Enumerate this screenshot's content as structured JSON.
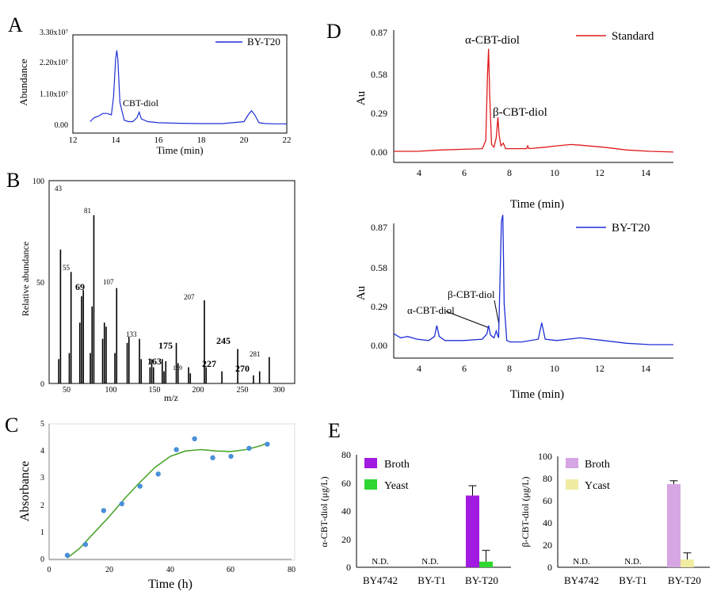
{
  "panels": {
    "A": {
      "letter": "A",
      "legend": "BY-T20",
      "peak_label": "CBT-diol",
      "xlabel": "Time (min)",
      "ylabel": "Abundance",
      "xticks": [
        "12",
        "14",
        "16",
        "18",
        "20",
        "22"
      ],
      "yticks": [
        "0.00",
        "1.10x10⁷",
        "2.20x10⁷",
        "3.30x10⁷"
      ]
    },
    "B": {
      "letter": "B",
      "xlabel": "m/z",
      "ylabel": "Relative abundance",
      "xticks": [
        "50",
        "100",
        "150",
        "200",
        "250",
        "300"
      ],
      "yticks": [
        "0",
        "50",
        "100"
      ],
      "labels": [
        "43",
        "55",
        "69",
        "81",
        "107",
        "133",
        "175",
        "163",
        "189",
        "207",
        "227",
        "245",
        "270",
        "281"
      ]
    },
    "C": {
      "letter": "C",
      "xlabel": "Time (h)",
      "ylabel": "Absorbance",
      "xticks": [
        "0",
        "20",
        "40",
        "60",
        "80"
      ],
      "yticks": [
        "0",
        "1",
        "2",
        "3",
        "4",
        "5"
      ]
    },
    "D": {
      "letter": "D",
      "top_legend": "Standard",
      "bottom_legend": "BY-T20",
      "top_labels": [
        "α-CBT-diol",
        "β-CBT-diol"
      ],
      "bottom_labels": [
        "β-CBT-diol",
        "α-CBT-diol"
      ],
      "xlabel": "Time (min)",
      "ylabel": "Au",
      "xticks": [
        "4",
        "6",
        "8",
        "10",
        "12",
        "14"
      ],
      "yticks": [
        "0.00",
        "0.29",
        "0.58",
        "0.87"
      ]
    },
    "E": {
      "letter": "E",
      "left_ylabel": "α-CBT-diol (μg/L)",
      "right_ylabel": "β-CBT-diol (μg/L)",
      "left_yticks": [
        "0",
        "20",
        "40",
        "60",
        "80"
      ],
      "right_yticks": [
        "0",
        "20",
        "40",
        "60",
        "80",
        "100"
      ],
      "categories": [
        "BY4742",
        "BY-T1",
        "BY-T20"
      ],
      "nd_label": "N.D.",
      "left_legend": [
        "Broth",
        "Yeast"
      ],
      "right_legend": [
        "Broth",
        "Ycast"
      ]
    }
  },
  "colors": {
    "blue": "#1f2fd6",
    "red": "#e01a1a",
    "green_curve": "#4da62f",
    "dot": "#4a90d9",
    "purple": "#a21be0",
    "green_bar": "#2fd62f",
    "lavender": "#d6a5e3",
    "cream": "#f0eca0"
  },
  "chart_data": [
    {
      "type": "line",
      "panel": "A",
      "xlabel": "Time (min)",
      "ylabel": "Abundance",
      "xlim": [
        12,
        22
      ],
      "ylim": [
        0,
        33000000
      ],
      "series": [
        {
          "name": "BY-T20",
          "x": [
            12.8,
            13.0,
            13.2,
            13.4,
            13.6,
            13.8,
            13.9,
            14.0,
            14.05,
            14.1,
            14.2,
            14.4,
            14.6,
            14.8,
            15.0,
            15.1,
            15.2,
            15.5,
            16.0,
            17.0,
            18.0,
            19.0,
            20.0,
            20.2,
            20.35,
            20.5,
            20.7,
            21.0,
            21.5,
            22.0
          ],
          "y": [
            1000000,
            2500000,
            3000000,
            4000000,
            4000000,
            3500000,
            10000000,
            24000000,
            27000000,
            24000000,
            8000000,
            1500000,
            1000000,
            1000000,
            2500000,
            4500000,
            2000000,
            1000000,
            600000,
            400000,
            300000,
            300000,
            1000000,
            3500000,
            5000000,
            3500000,
            600000,
            300000,
            200000,
            200000
          ]
        }
      ],
      "annotations": [
        "CBT-diol"
      ]
    },
    {
      "type": "bar",
      "panel": "B",
      "xlabel": "m/z",
      "ylabel": "Relative abundance",
      "xlim": [
        30,
        310
      ],
      "ylim": [
        0,
        100
      ],
      "x": [
        41,
        43,
        53,
        55,
        65,
        67,
        69,
        77,
        79,
        81,
        91,
        93,
        95,
        105,
        107,
        119,
        121,
        133,
        135,
        145,
        147,
        149,
        159,
        161,
        163,
        175,
        177,
        189,
        191,
        207,
        209,
        227,
        245,
        263,
        270,
        281
      ],
      "values": [
        12,
        66,
        15,
        55,
        30,
        43,
        46,
        15,
        38,
        83,
        22,
        30,
        28,
        15,
        47,
        20,
        23,
        22,
        12,
        8,
        12,
        8,
        12,
        6,
        11,
        20,
        10,
        8,
        5,
        41,
        8,
        6,
        17,
        4,
        6,
        13
      ]
    },
    {
      "type": "scatter",
      "panel": "C",
      "xlabel": "Time (h)",
      "ylabel": "Absorbance",
      "xlim": [
        0,
        80
      ],
      "ylim": [
        0,
        5
      ],
      "series": [
        {
          "name": "",
          "x": [
            6,
            12,
            18,
            24,
            30,
            36,
            42,
            48,
            54,
            60,
            66,
            72
          ],
          "y": [
            0.15,
            0.55,
            1.8,
            2.05,
            2.7,
            3.15,
            4.05,
            4.45,
            3.75,
            3.8,
            4.1,
            4.25
          ]
        }
      ],
      "fit": {
        "x": [
          6,
          10,
          15,
          20,
          25,
          30,
          35,
          40,
          45,
          50,
          55,
          60,
          65,
          70,
          72
        ],
        "y": [
          0.05,
          0.4,
          1.0,
          1.6,
          2.25,
          2.85,
          3.4,
          3.8,
          4.0,
          4.05,
          4.0,
          3.98,
          4.05,
          4.2,
          4.3
        ]
      }
    },
    {
      "type": "line",
      "panel": "D-top",
      "xlabel": "Time (min)",
      "ylabel": "Au",
      "xlim": [
        3,
        15
      ],
      "ylim": [
        -0.05,
        0.87
      ],
      "series": [
        {
          "name": "Standard",
          "x": [
            3.0,
            4.0,
            5.0,
            6.0,
            6.8,
            6.95,
            7.02,
            7.07,
            7.12,
            7.2,
            7.3,
            7.4,
            7.47,
            7.52,
            7.6,
            7.7,
            7.8,
            8.0,
            8.7,
            8.75,
            8.8,
            9.5,
            10.0,
            10.6,
            11.0,
            12.0,
            13.0,
            14.0,
            15.0
          ],
          "y": [
            0.0,
            0.0,
            0.01,
            0.015,
            0.02,
            0.08,
            0.55,
            0.75,
            0.4,
            0.05,
            0.03,
            0.1,
            0.25,
            0.12,
            0.04,
            0.06,
            0.02,
            0.02,
            0.02,
            0.04,
            0.02,
            0.03,
            0.04,
            0.05,
            0.045,
            0.03,
            0.01,
            0.0,
            -0.005
          ]
        }
      ],
      "annotations": [
        "α-CBT-diol",
        "β-CBT-diol"
      ]
    },
    {
      "type": "line",
      "panel": "D-bottom",
      "xlabel": "Time (min)",
      "ylabel": "Au",
      "xlim": [
        3,
        15
      ],
      "ylim": [
        -0.05,
        0.87
      ],
      "series": [
        {
          "name": "BY-T20",
          "x": [
            3.0,
            3.3,
            3.6,
            4.0,
            4.5,
            4.75,
            4.85,
            4.95,
            5.2,
            6.0,
            6.8,
            7.0,
            7.07,
            7.15,
            7.3,
            7.4,
            7.5,
            7.62,
            7.68,
            7.74,
            7.85,
            8.0,
            8.5,
            9.2,
            9.35,
            9.5,
            10.0,
            11.0,
            12.0,
            13.0,
            14.0,
            15.0
          ],
          "y": [
            0.08,
            0.05,
            0.06,
            0.04,
            0.03,
            0.06,
            0.14,
            0.06,
            0.03,
            0.03,
            0.04,
            0.08,
            0.14,
            0.07,
            0.05,
            0.1,
            0.05,
            0.9,
            0.95,
            0.3,
            0.03,
            0.02,
            0.02,
            0.04,
            0.16,
            0.04,
            0.03,
            0.05,
            0.03,
            0.01,
            0.0,
            0.0
          ]
        }
      ],
      "annotations": [
        "β-CBT-diol",
        "α-CBT-diol"
      ]
    },
    {
      "type": "bar",
      "panel": "E-left",
      "ylabel": "α-CBT-diol (μg/L)",
      "ylim": [
        0,
        80
      ],
      "categories": [
        "BY4742",
        "BY-T1",
        "BY-T20"
      ],
      "series": [
        {
          "name": "Broth",
          "values": [
            0,
            0,
            51
          ],
          "error": [
            0,
            0,
            7
          ]
        },
        {
          "name": "Yeast",
          "values": [
            0,
            0,
            4
          ],
          "error": [
            0,
            0,
            8
          ]
        }
      ],
      "annotations": [
        "N.D.",
        "N.D."
      ]
    },
    {
      "type": "bar",
      "panel": "E-right",
      "ylabel": "β-CBT-diol (μg/L)",
      "ylim": [
        0,
        100
      ],
      "categories": [
        "BY4742",
        "BY-T1",
        "BY-T20"
      ],
      "series": [
        {
          "name": "Broth",
          "values": [
            0,
            0,
            75
          ],
          "error": [
            0,
            0,
            3
          ]
        },
        {
          "name": "Ycast",
          "values": [
            0,
            0,
            7
          ],
          "error": [
            0,
            0,
            6
          ]
        }
      ],
      "annotations": [
        "N.D.",
        "N.D."
      ]
    }
  ]
}
